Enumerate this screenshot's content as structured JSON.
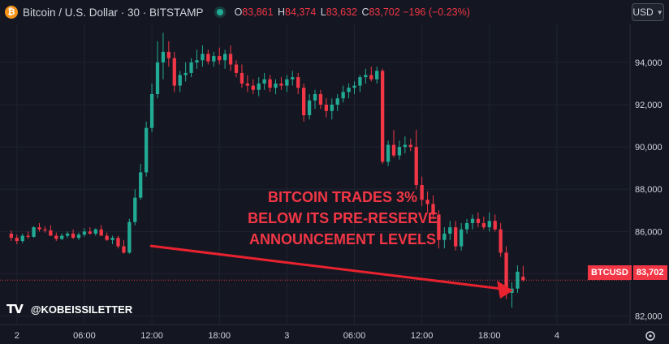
{
  "header": {
    "title": "Bitcoin / U.S. Dollar · 30 · BITSTAMP",
    "open_key": "O",
    "open": "83,861",
    "high_key": "H",
    "high": "84,374",
    "low_key": "L",
    "low": "83,632",
    "close_key": "C",
    "close": "83,702",
    "change": "−196 (−0.23%)",
    "coin_icon": "bitcoin-icon",
    "status_icon": "market-status-dot"
  },
  "currency_button": {
    "label": "USD",
    "icon": "chevron-down-icon"
  },
  "annotation": {
    "line1": "BITCOIN TRADES 3%",
    "line2": "BELOW ITS PRE-RESERVE",
    "line3": "ANNOUNCEMENT LEVELS"
  },
  "watermark": {
    "logo": "TV",
    "handle": "@KOBEISSILETTER"
  },
  "price_label": {
    "symbol": "BTCUSD",
    "value": "83,702"
  },
  "settings_icon": "gear-icon",
  "colors": {
    "up": "#22ab94",
    "down": "#f23645",
    "background": "#141722",
    "text": "#d1d4dc"
  },
  "chart_data": {
    "type": "candlestick",
    "title": "Bitcoin / U.S. Dollar · 30 · BITSTAMP",
    "ylim": [
      81600,
      95800
    ],
    "y_ticks": [
      82000,
      84000,
      86000,
      88000,
      90000,
      92000,
      94000
    ],
    "y_tick_labels": [
      "82,000",
      "84,000",
      "86,000",
      "88,000",
      "90,000",
      "92,000",
      "94,000"
    ],
    "x_ticks": [
      1,
      13,
      25,
      37,
      49,
      61,
      73,
      85,
      97
    ],
    "x_tick_labels": [
      "2",
      "06:00",
      "12:00",
      "18:00",
      "3",
      "06:00",
      "12:00",
      "18:00",
      "4"
    ],
    "x_range": [
      -2,
      110
    ],
    "last_price": 83702,
    "grid": true,
    "ohlc": [
      [
        85900,
        86050,
        85550,
        85700
      ],
      [
        85700,
        85850,
        85400,
        85550
      ],
      [
        85550,
        85900,
        85450,
        85800
      ],
      [
        85800,
        86000,
        85650,
        85750
      ],
      [
        85750,
        86250,
        85700,
        86200
      ],
      [
        86200,
        86400,
        86000,
        86100
      ],
      [
        86100,
        86250,
        85950,
        86050
      ],
      [
        86050,
        86300,
        85900,
        85800
      ],
      [
        85800,
        85950,
        85550,
        85650
      ],
      [
        85650,
        85900,
        85600,
        85800
      ],
      [
        85800,
        86000,
        85700,
        85900
      ],
      [
        85900,
        86100,
        85650,
        85700
      ],
      [
        85700,
        85950,
        85600,
        85850
      ],
      [
        85850,
        86150,
        85750,
        86000
      ],
      [
        86000,
        86200,
        85850,
        85900
      ],
      [
        85900,
        86150,
        85800,
        86100
      ],
      [
        86100,
        86300,
        85900,
        85800
      ],
      [
        85800,
        85950,
        85550,
        85600
      ],
      [
        85600,
        85800,
        85400,
        85700
      ],
      [
        85700,
        85800,
        85200,
        85300
      ],
      [
        85300,
        85600,
        84950,
        85000
      ],
      [
        85000,
        86600,
        84950,
        86450
      ],
      [
        86450,
        88000,
        86300,
        87600
      ],
      [
        87600,
        89200,
        87500,
        88800
      ],
      [
        88800,
        91200,
        88600,
        90900
      ],
      [
        90900,
        93000,
        90700,
        92500
      ],
      [
        92500,
        95000,
        92300,
        94000
      ],
      [
        94000,
        95400,
        93200,
        94500
      ],
      [
        94500,
        95000,
        93800,
        94200
      ],
      [
        94200,
        94500,
        92600,
        92900
      ],
      [
        92900,
        93600,
        92600,
        93400
      ],
      [
        93400,
        94000,
        93100,
        93500
      ],
      [
        93500,
        94200,
        93300,
        94000
      ],
      [
        94000,
        94600,
        93700,
        94100
      ],
      [
        94100,
        94800,
        93800,
        94400
      ],
      [
        94400,
        94600,
        93900,
        94050
      ],
      [
        94050,
        94500,
        93800,
        94300
      ],
      [
        94300,
        94700,
        93900,
        94100
      ],
      [
        94100,
        94600,
        93700,
        94400
      ],
      [
        94400,
        94800,
        93600,
        93900
      ],
      [
        93900,
        94100,
        93300,
        93500
      ],
      [
        93500,
        93900,
        92800,
        93000
      ],
      [
        93000,
        93400,
        92600,
        92900
      ],
      [
        92900,
        93200,
        92500,
        92700
      ],
      [
        92700,
        93300,
        92400,
        93000
      ],
      [
        93000,
        93500,
        92700,
        93200
      ],
      [
        93200,
        93400,
        92600,
        92800
      ],
      [
        92800,
        93200,
        92500,
        93000
      ],
      [
        93000,
        93300,
        92700,
        92900
      ],
      [
        92900,
        93400,
        92600,
        93200
      ],
      [
        93200,
        93600,
        92900,
        93300
      ],
      [
        93300,
        93500,
        92500,
        92800
      ],
      [
        92800,
        93000,
        91200,
        91500
      ],
      [
        91500,
        92500,
        91300,
        92200
      ],
      [
        92200,
        92700,
        91800,
        92500
      ],
      [
        92500,
        92700,
        91800,
        92000
      ],
      [
        92000,
        92300,
        91400,
        91700
      ],
      [
        91700,
        92300,
        91300,
        92000
      ],
      [
        92000,
        92500,
        91700,
        92300
      ],
      [
        92300,
        92900,
        92100,
        92600
      ],
      [
        92600,
        93000,
        92300,
        92800
      ],
      [
        92800,
        93100,
        92500,
        92900
      ],
      [
        92900,
        93400,
        92600,
        93300
      ],
      [
        93300,
        93700,
        93000,
        93400
      ],
      [
        93400,
        93800,
        93100,
        93200
      ],
      [
        93200,
        93800,
        93000,
        93600
      ],
      [
        93600,
        93700,
        89200,
        89300
      ],
      [
        89300,
        90300,
        89100,
        90100
      ],
      [
        90100,
        90800,
        89500,
        89600
      ],
      [
        89600,
        90300,
        89400,
        90000
      ],
      [
        90000,
        90500,
        89700,
        90100
      ],
      [
        90100,
        90400,
        89800,
        90000
      ],
      [
        90000,
        90800,
        88000,
        88200
      ],
      [
        88200,
        88600,
        87200,
        87500
      ],
      [
        87500,
        87900,
        86900,
        87300
      ],
      [
        87300,
        87700,
        86600,
        86800
      ],
      [
        86800,
        87000,
        85200,
        85600
      ],
      [
        85600,
        86200,
        85200,
        85900
      ],
      [
        85900,
        86500,
        85600,
        86200
      ],
      [
        86200,
        86500,
        85100,
        85300
      ],
      [
        85300,
        86400,
        85100,
        86100
      ],
      [
        86100,
        86600,
        85900,
        86400
      ],
      [
        86400,
        86800,
        86100,
        86600
      ],
      [
        86600,
        86900,
        86200,
        86400
      ],
      [
        86400,
        86700,
        86100,
        86200
      ],
      [
        86200,
        86900,
        86000,
        86500
      ],
      [
        86500,
        86800,
        86000,
        86100
      ],
      [
        86100,
        86400,
        84800,
        85000
      ],
      [
        85000,
        85300,
        82800,
        83100
      ],
      [
        83100,
        83600,
        82400,
        83300
      ],
      [
        83300,
        84400,
        83100,
        84100
      ],
      [
        83861,
        84374,
        83632,
        83702
      ]
    ]
  }
}
